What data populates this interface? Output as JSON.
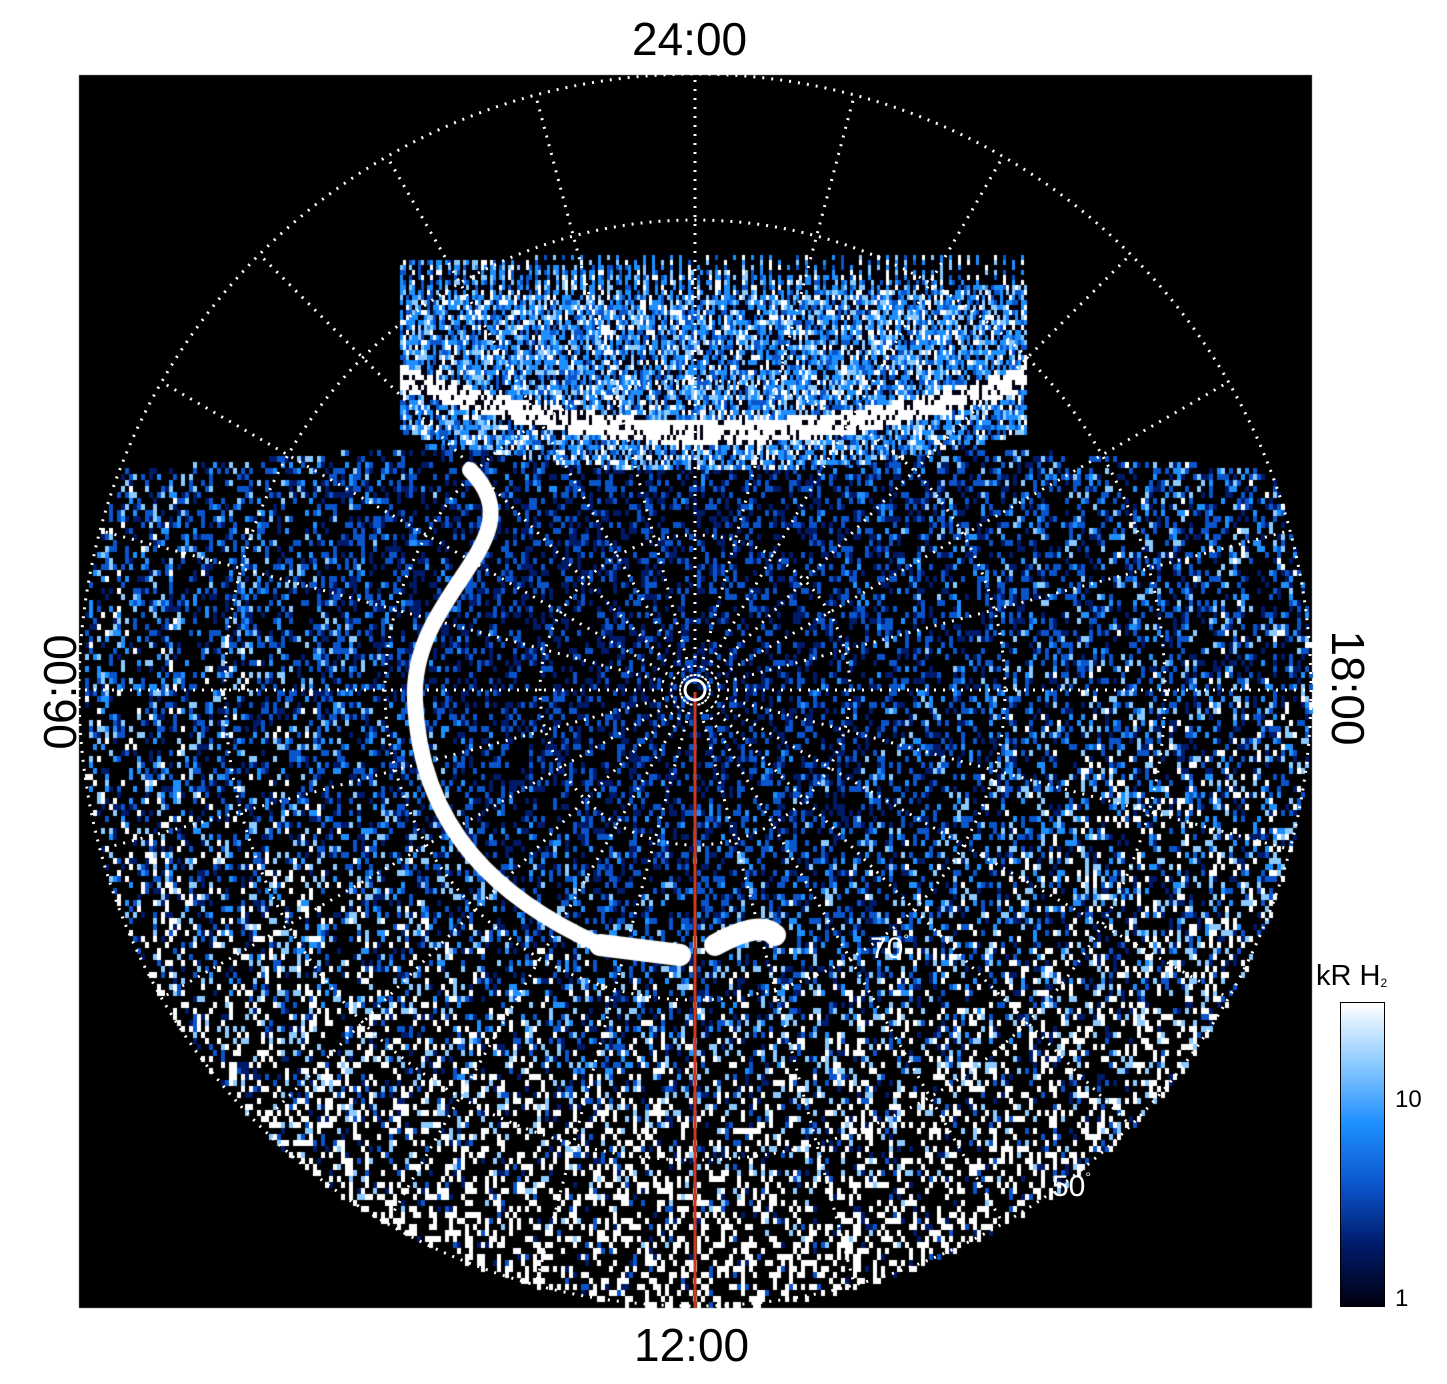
{
  "image": {
    "description_of_colors": {
      "background": "#000000",
      "grid": "#ffffff",
      "meridian_line": "#cc3a1a"
    },
    "axis_labels": {
      "top": "24:00",
      "bottom": "12:00",
      "left": "06:00",
      "right": "18:00"
    },
    "latitude_labels": {
      "lat70": "70",
      "lat50": "50",
      "degree_symbol": "°"
    },
    "colorbar": {
      "title_main": "kR H",
      "title_sub": "2",
      "tick_high": "10",
      "tick_low": "1",
      "colors": [
        "#000010",
        "#001a6a",
        "#0a55cc",
        "#1e8fff",
        "#8ccaff",
        "#ffffff"
      ]
    }
  }
}
